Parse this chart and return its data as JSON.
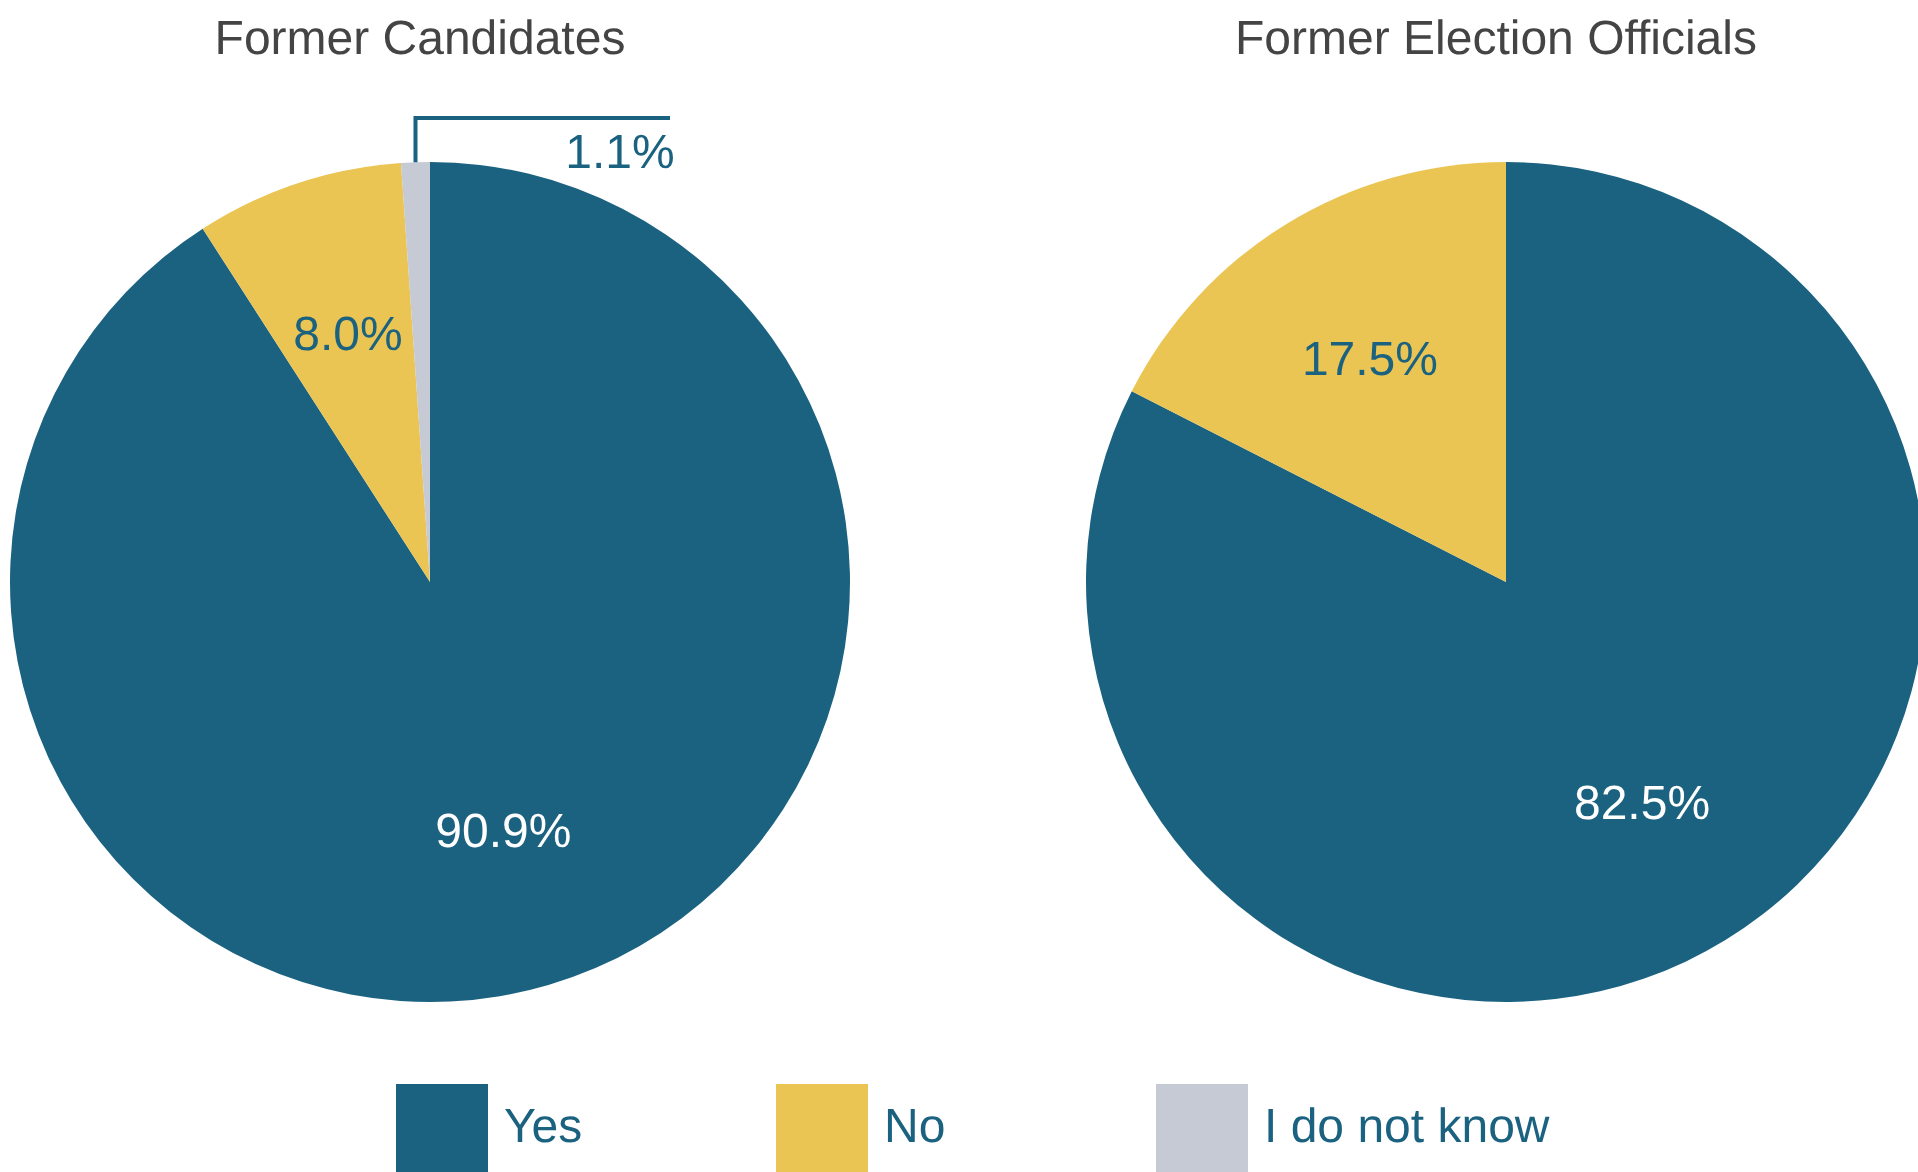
{
  "chart_data": [
    {
      "type": "pie",
      "title": "Former Candidates",
      "categories": [
        "Yes",
        "No",
        "I do not know"
      ],
      "values": [
        90.9,
        8.0,
        1.1
      ],
      "colors": [
        "#1b6280",
        "#eac553",
        "#c5cad5"
      ],
      "value_labels": [
        "90.9%",
        "8.0%",
        "1.1%"
      ],
      "legend": "bottom"
    },
    {
      "type": "pie",
      "title": "Former Election Officials",
      "categories": [
        null,
        null
      ],
      "values": [
        82.5,
        17.5
      ],
      "colors": [
        "#1b6280",
        "#eac553"
      ],
      "value_labels": [
        "82.5%",
        "17.5%"
      ]
    }
  ]
}
